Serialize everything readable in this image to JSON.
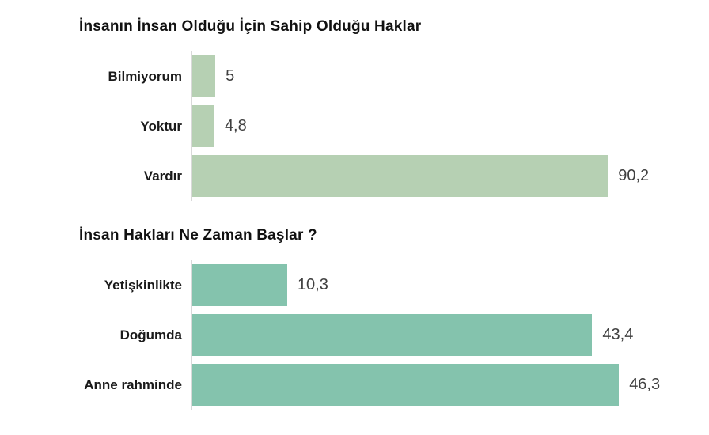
{
  "colors": {
    "background": "#ffffff",
    "axis_line": "#d9d9d9",
    "category_label": "#1a1a1a",
    "value_label": "#404040",
    "title": "#111111",
    "chart1_bar": "#b6d0b3",
    "chart2_bar": "#84c3ad"
  },
  "chart_data": [
    {
      "type": "bar",
      "orientation": "horizontal",
      "title": "İnsanın İnsan Olduğu İçin Sahip Olduğu Haklar",
      "categories": [
        "Bilmiyorum",
        "Yoktur",
        "Vardır"
      ],
      "values": [
        5,
        4.8,
        90.2
      ],
      "value_labels": [
        "5",
        "4,8",
        "90,2"
      ],
      "bar_color": "#b6d0b3",
      "xlim": [
        0,
        96
      ],
      "xlabel": "",
      "ylabel": "",
      "grid": false,
      "legend": false,
      "value_label_position": "right-of-bar"
    },
    {
      "type": "bar",
      "orientation": "horizontal",
      "title": "İnsan Hakları Ne Zaman Başlar ?",
      "categories": [
        "Yetişkinlikte",
        "Doğumda",
        "Anne rahminde"
      ],
      "values": [
        10.3,
        43.4,
        46.3
      ],
      "value_labels": [
        "10,3",
        "43,4",
        "46,3"
      ],
      "bar_color": "#84c3ad",
      "xlim": [
        0,
        48
      ],
      "xlabel": "",
      "ylabel": "",
      "grid": false,
      "legend": false,
      "value_label_position": "right-of-bar"
    }
  ]
}
